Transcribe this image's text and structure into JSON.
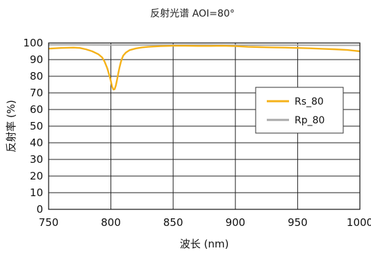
{
  "chart_data": {
    "type": "line",
    "title": "反射光谱 AOI=80°",
    "xlabel": "波长 (nm)",
    "ylabel": "反射率 (%)",
    "xlim": [
      750,
      1000
    ],
    "ylim": [
      0,
      100
    ],
    "xticks": [
      750,
      800,
      850,
      900,
      950,
      1000
    ],
    "yticks": [
      0,
      10,
      20,
      30,
      40,
      50,
      60,
      70,
      80,
      90,
      100
    ],
    "xtick_labels": [
      "750",
      "800",
      "850",
      "900",
      "950",
      "1000"
    ],
    "ytick_labels": [
      "0",
      "10",
      "20",
      "30",
      "40",
      "50",
      "60",
      "70",
      "80",
      "90",
      "100"
    ],
    "grid": true,
    "legend_position": "center-right",
    "series": [
      {
        "name": "Rs_80",
        "color": "#f5b21a",
        "x": [
          750,
          760,
          770,
          775,
          780,
          785,
          790,
          793,
          795,
          797,
          799,
          800,
          801,
          802,
          803,
          804,
          805,
          806,
          807,
          808,
          809,
          810,
          812,
          815,
          820,
          825,
          830,
          840,
          850,
          860,
          870,
          880,
          890,
          900,
          910,
          920,
          930,
          940,
          950,
          960,
          970,
          980,
          990,
          1000
        ],
        "y": [
          96.6,
          97.0,
          97.2,
          97.0,
          96.2,
          95.0,
          93.2,
          91.3,
          88.7,
          85.0,
          80.0,
          77.0,
          73.7,
          72.0,
          72.2,
          74.5,
          78.0,
          82.0,
          85.5,
          88.5,
          90.8,
          92.5,
          94.2,
          95.7,
          96.7,
          97.3,
          97.7,
          98.1,
          98.3,
          98.3,
          98.2,
          98.2,
          98.3,
          98.1,
          97.7,
          97.5,
          97.3,
          97.2,
          97.0,
          96.8,
          96.5,
          96.2,
          95.8,
          95.0
        ]
      },
      {
        "name": "Rp_80",
        "color": "#aaaaaa",
        "x": [
          750,
          775,
          800,
          825,
          850,
          875,
          900,
          925,
          950,
          975,
          1000
        ],
        "y": [
          98.9,
          98.9,
          98.8,
          98.8,
          98.8,
          98.8,
          98.7,
          98.7,
          98.7,
          98.6,
          98.6
        ]
      }
    ]
  }
}
